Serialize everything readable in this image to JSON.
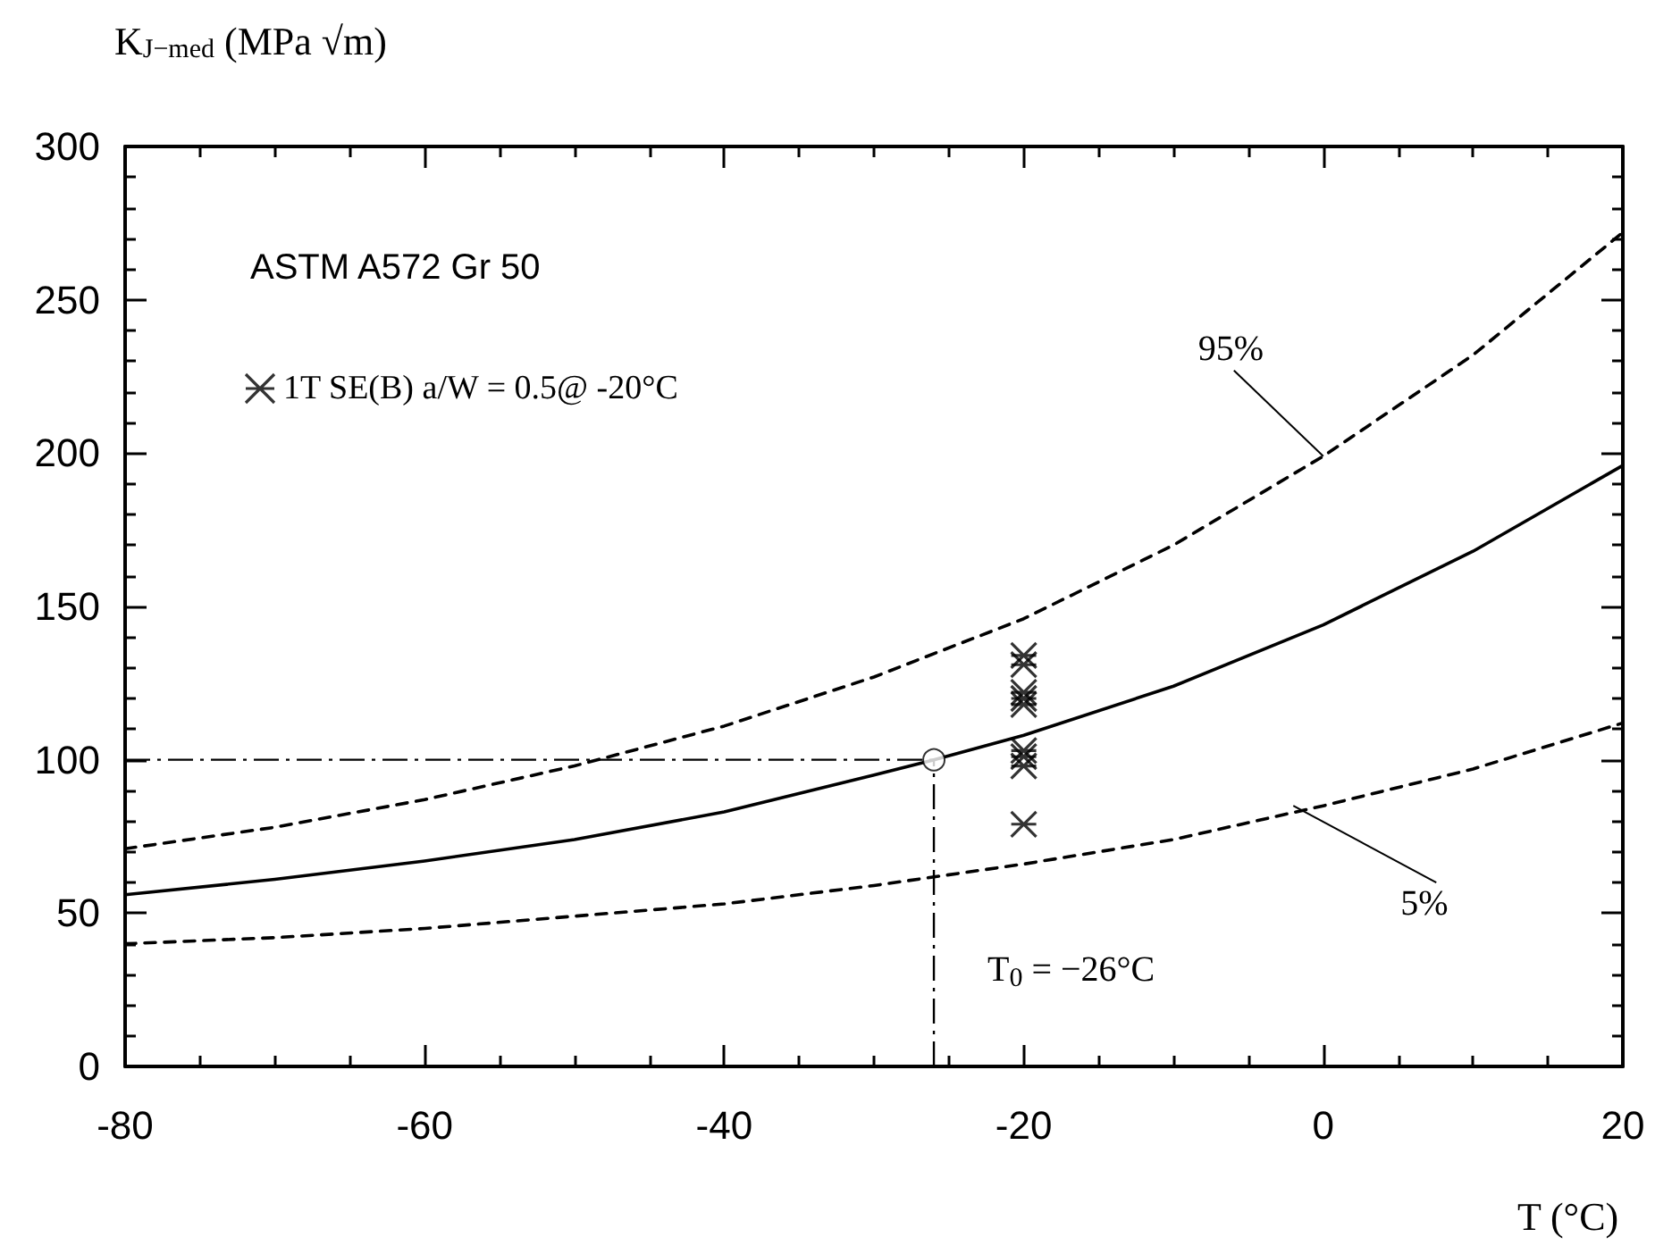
{
  "chart_data": {
    "type": "line",
    "title": "ASTM A572 Gr 50",
    "xlabel": "T (°C)",
    "ylabel": "K$_{J−med}$ (MPa √m)",
    "xlim": [
      -80,
      20
    ],
    "xticks": [
      -80,
      -60,
      -40,
      -20,
      0,
      20
    ],
    "ylim": [
      0,
      300
    ],
    "yticks": [
      0,
      50,
      100,
      150,
      200,
      250,
      300
    ],
    "grid": false,
    "legend": "top left",
    "marker": "none",
    "series": [
      {
        "type": "line",
        "color": "#000000",
        "line_style": "solid",
        "x": [
          -80,
          -70,
          -60,
          -50,
          -40,
          -30,
          -26,
          -20,
          -10,
          0,
          10,
          20
        ],
        "values": [
          56,
          61,
          67,
          74,
          83,
          95,
          100,
          108,
          124,
          144,
          168,
          196
        ]
      },
      {
        "type": "line",
        "color": "#000000",
        "line_style": "dashed",
        "x": [
          -80,
          -70,
          -60,
          -50,
          -40,
          -30,
          -20,
          -10,
          0,
          10,
          20
        ],
        "values": [
          71,
          78,
          87,
          98,
          111,
          127,
          146,
          170,
          199,
          232,
          272
        ]
      },
      {
        "type": "line",
        "color": "#000000",
        "line_style": "dashed",
        "x": [
          -80,
          -70,
          -60,
          -50,
          -40,
          -30,
          -20,
          -10,
          0,
          10,
          20
        ],
        "values": [
          40,
          42,
          45,
          49,
          53,
          59,
          66,
          74,
          85,
          97,
          112
        ]
      },
      {
        "type": "scatter",
        "name": "1T SE(B) a/W = 0.5@ -20°C",
        "marker": "cross",
        "color": "#000000",
        "x": [
          -20,
          -20,
          -20,
          -20,
          -20,
          -20,
          -20,
          -20,
          -20
        ],
        "values": [
          134,
          131,
          122,
          120,
          118,
          103,
          101,
          98,
          79
        ]
      }
    ],
    "ref_lines": [
      {
        "axis": "y",
        "value": 100,
        "line_style": "dashdot",
        "color": "#000000"
      },
      {
        "axis": "x",
        "value": -26,
        "line_style": "dashdot",
        "color": "#000000"
      }
    ],
    "annotations": [
      {
        "text": "95%",
        "x": 0,
        "y": 199
      },
      {
        "text": "5%",
        "x": -2,
        "y": 85
      },
      {
        "text": "T$_{0}$ = −26°C",
        "x": -26,
        "y": 27
      }
    ]
  }
}
